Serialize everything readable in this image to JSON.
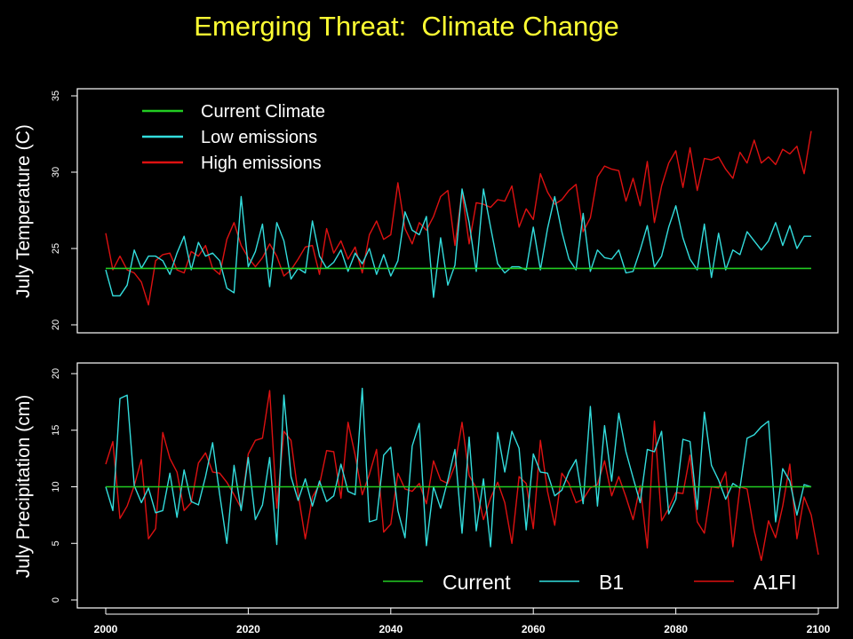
{
  "title": "Emerging Threat:  Climate Change",
  "colors": {
    "current": "#22cc22",
    "low": "#33dddd",
    "high": "#dd1111",
    "title": "#ffff33"
  },
  "chart_data": [
    {
      "type": "line",
      "ylabel": "July Temperature (C)",
      "xlabel": "",
      "xlim": [
        2000,
        2100
      ],
      "ylim": [
        20,
        35
      ],
      "yticks": [
        "20",
        "25",
        "30",
        "35"
      ],
      "legend_placement": "top-left",
      "x_start": 2000,
      "series": [
        {
          "name": "Current Climate",
          "color": "#22cc22",
          "values": [
            23.7,
            23.7
          ],
          "x": [
            2000,
            2099
          ]
        },
        {
          "name": "Low emissions",
          "color": "#33dddd",
          "values": [
            23.6,
            21.9,
            21.9,
            22.6,
            24.9,
            23.7,
            24.5,
            24.5,
            24.2,
            23.3,
            24.7,
            25.8,
            23.6,
            25.4,
            24.5,
            24.7,
            24.2,
            22.4,
            22.1,
            28.4,
            23.8,
            24.8,
            26.6,
            22.5,
            26.7,
            25.5,
            23.0,
            23.7,
            23.4,
            26.8,
            24.5,
            23.7,
            24.1,
            24.9,
            23.5,
            24.7,
            24.0,
            25.0,
            23.3,
            24.6,
            23.2,
            24.2,
            27.4,
            26.2,
            25.9,
            27.1,
            21.8,
            25.7,
            22.6,
            23.9,
            28.9,
            26.7,
            23.5,
            28.9,
            26.4,
            24.0,
            23.4,
            23.8,
            23.8,
            23.6,
            26.4,
            23.6,
            26.3,
            28.4,
            26.1,
            24.3,
            23.6,
            27.3,
            23.5,
            24.9,
            24.4,
            24.3,
            24.9,
            23.4,
            23.5,
            24.9,
            26.5,
            23.8,
            24.5,
            26.4,
            27.8,
            25.7,
            24.3,
            23.6,
            26.6,
            23.1,
            26.0,
            23.6,
            24.9,
            24.6,
            26.1,
            25.5,
            24.9,
            25.5,
            26.7,
            25.2,
            26.5,
            25.0,
            25.8,
            25.8
          ]
        },
        {
          "name": "High emissions",
          "color": "#dd1111",
          "values": [
            26.0,
            23.6,
            24.5,
            23.6,
            23.4,
            22.8,
            21.3,
            24.2,
            24.6,
            24.7,
            23.6,
            23.4,
            24.8,
            24.5,
            25.2,
            23.7,
            23.3,
            25.6,
            26.7,
            25.2,
            24.4,
            23.8,
            24.4,
            25.3,
            24.5,
            23.2,
            23.6,
            24.3,
            25.1,
            25.2,
            23.3,
            26.3,
            24.7,
            25.5,
            24.3,
            25.1,
            23.4,
            25.9,
            26.8,
            25.6,
            25.9,
            29.3,
            26.3,
            25.3,
            26.7,
            26.2,
            27.1,
            28.4,
            28.8,
            25.2,
            28.7,
            25.3,
            28.0,
            27.9,
            27.7,
            28.2,
            28.1,
            29.1,
            26.4,
            27.6,
            26.9,
            29.9,
            28.7,
            27.9,
            28.2,
            28.8,
            29.2,
            26.1,
            27.0,
            29.7,
            30.4,
            30.2,
            30.1,
            28.1,
            29.6,
            27.8,
            30.7,
            26.7,
            29.1,
            30.6,
            31.4,
            29.0,
            31.6,
            28.8,
            30.9,
            30.8,
            31.0,
            30.2,
            29.6,
            31.3,
            30.6,
            32.1,
            30.6,
            31.0,
            30.5,
            31.5,
            31.2,
            31.7,
            29.9,
            32.7
          ]
        }
      ]
    },
    {
      "type": "line",
      "ylabel": "July Precipitation (cm)",
      "xlabel": "",
      "xlim": [
        2000,
        2100
      ],
      "ylim": [
        0,
        20
      ],
      "yticks": [
        "0",
        "5",
        "10",
        "15",
        "20"
      ],
      "xticks": [
        "2000",
        "2020",
        "2040",
        "2060",
        "2080",
        "2100"
      ],
      "legend_placement": "bottom-right",
      "x_start": 2000,
      "series": [
        {
          "name": "Current",
          "color": "#22cc22",
          "values": [
            10.0,
            10.0
          ],
          "x": [
            2000,
            2099
          ]
        },
        {
          "name": "B1",
          "color": "#33dddd",
          "values": [
            10.0,
            7.9,
            17.8,
            18.1,
            10.1,
            8.6,
            9.9,
            7.7,
            7.9,
            11.2,
            7.3,
            11.5,
            8.7,
            8.4,
            10.9,
            13.9,
            9.3,
            5.0,
            11.9,
            7.9,
            12.6,
            7.1,
            8.4,
            12.6,
            4.9,
            18.1,
            10.9,
            8.8,
            10.7,
            8.3,
            10.5,
            8.7,
            9.2,
            12.0,
            9.6,
            9.3,
            18.7,
            6.9,
            7.1,
            12.8,
            13.5,
            7.9,
            5.5,
            13.6,
            15.6,
            4.8,
            10.0,
            8.1,
            10.6,
            13.3,
            5.9,
            14.4,
            6.1,
            10.7,
            4.7,
            14.8,
            11.3,
            14.9,
            13.4,
            6.2,
            12.9,
            11.3,
            11.2,
            9.2,
            9.7,
            11.3,
            12.4,
            8.5,
            17.1,
            8.3,
            15.4,
            10.5,
            16.5,
            13.1,
            10.8,
            8.6,
            13.3,
            13.1,
            14.9,
            7.6,
            8.9,
            14.2,
            14.0,
            8.0,
            16.6,
            11.9,
            10.6,
            8.9,
            10.3,
            9.9,
            14.3,
            14.6,
            15.3,
            15.8,
            6.9,
            11.6,
            10.5,
            7.5,
            10.2,
            10.0
          ]
        },
        {
          "name": "A1FI",
          "color": "#dd1111",
          "values": [
            12.0,
            14.0,
            7.2,
            8.3,
            10.1,
            12.4,
            5.4,
            6.3,
            14.8,
            12.5,
            11.3,
            7.9,
            8.6,
            12.1,
            13.0,
            11.3,
            11.2,
            10.4,
            9.3,
            8.1,
            12.9,
            14.1,
            14.3,
            18.5,
            8.1,
            14.9,
            14.1,
            9.4,
            5.4,
            9.1,
            10.2,
            13.2,
            13.1,
            9.0,
            15.7,
            12.8,
            9.3,
            11.1,
            13.3,
            6.0,
            6.7,
            11.2,
            9.8,
            9.6,
            10.3,
            8.5,
            12.3,
            10.6,
            10.3,
            11.9,
            15.7,
            11.0,
            9.9,
            7.1,
            9.0,
            10.4,
            8.6,
            5.0,
            10.9,
            10.3,
            6.3,
            14.1,
            9.6,
            6.6,
            11.2,
            10.3,
            8.6,
            8.9,
            9.9,
            10.2,
            12.3,
            9.2,
            10.9,
            9.1,
            7.1,
            10.1,
            4.6,
            15.8,
            7.0,
            8.1,
            9.5,
            9.4,
            12.8,
            6.9,
            5.9,
            10.0,
            9.9,
            11.3,
            4.7,
            10.0,
            9.8,
            6.1,
            3.5,
            7.0,
            5.5,
            8.3,
            12.0,
            5.4,
            9.1,
            7.5,
            4.0
          ]
        }
      ]
    }
  ]
}
